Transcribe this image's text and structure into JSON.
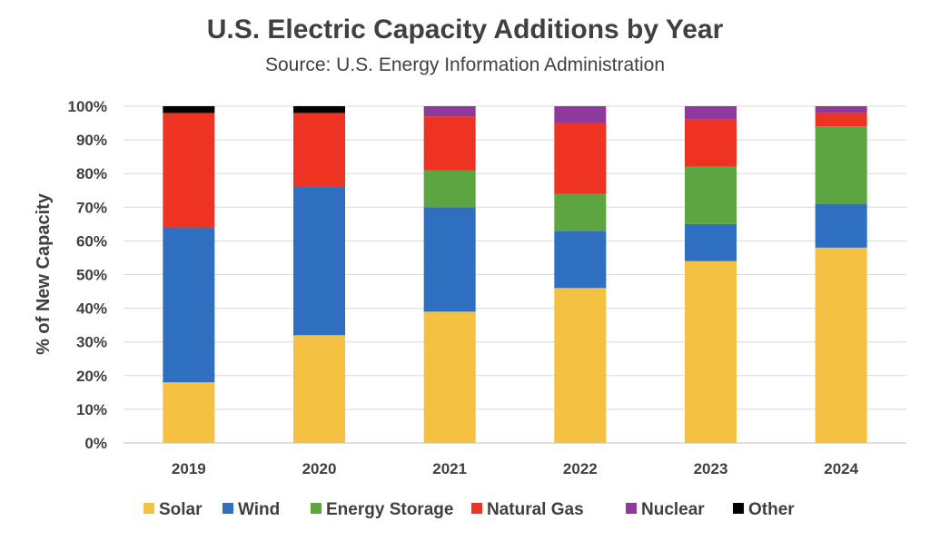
{
  "chart_data": {
    "type": "bar",
    "stacked": true,
    "title": "U.S. Electric Capacity Additions by Year",
    "subtitle": "Source: U.S. Energy Information Administration",
    "xlabel": "",
    "ylabel": "% of New Capacity",
    "ylim": [
      0,
      100
    ],
    "yticks": [
      "0%",
      "10%",
      "20%",
      "30%",
      "40%",
      "50%",
      "60%",
      "70%",
      "80%",
      "90%",
      "100%"
    ],
    "grid": true,
    "legend_position": "bottom",
    "categories": [
      "2019",
      "2020",
      "2021",
      "2022",
      "2023",
      "2024"
    ],
    "series": [
      {
        "name": "Solar",
        "color": "#F4C142",
        "values": [
          18,
          32,
          39,
          46,
          54,
          58
        ]
      },
      {
        "name": "Wind",
        "color": "#2E6FC0",
        "values": [
          46,
          44,
          31,
          17,
          11,
          13
        ]
      },
      {
        "name": "Energy Storage",
        "color": "#5DA541",
        "values": [
          0,
          0,
          11,
          11,
          17,
          23
        ]
      },
      {
        "name": "Natural Gas",
        "color": "#EE3323",
        "values": [
          34,
          22,
          16,
          21,
          14,
          4
        ]
      },
      {
        "name": "Nuclear",
        "color": "#8E3A9C",
        "values": [
          0,
          0,
          3,
          5,
          4,
          2
        ]
      },
      {
        "name": "Other",
        "color": "#000000",
        "values": [
          2,
          2,
          0,
          0,
          0,
          0
        ]
      }
    ]
  }
}
